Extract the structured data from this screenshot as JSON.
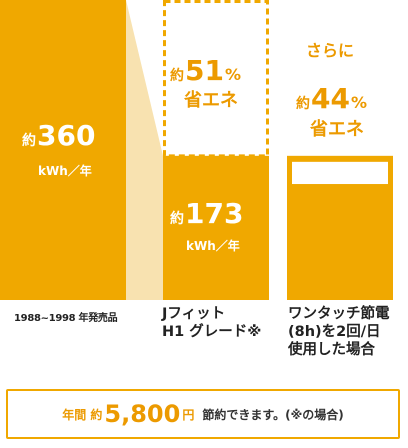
{
  "chart_data": {
    "type": "bar",
    "unit": "kWh／年",
    "categories": [
      "1988~1998 年発売品",
      "Jフィット H1グレード※",
      "ワンタッチ節電(8h)を2回/日 使用した場合"
    ],
    "category_lines": [
      [
        "1988~1998 年発売品"
      ],
      [
        "Jフィット",
        "H1 グレード※"
      ],
      [
        "ワンタッチ節電",
        "(8h)を2回/日",
        "使用した場合"
      ]
    ],
    "values": [
      360,
      173,
      null
    ],
    "bar_labels": [
      {
        "prefix": "約",
        "value": "360",
        "unit": "kWh／年"
      },
      {
        "prefix": "約",
        "value": "173",
        "unit": "kWh／年"
      }
    ],
    "savings": [
      {
        "category": "Jフィット H1グレード※",
        "pre": "",
        "prefix": "約",
        "value": "51",
        "percent": "%",
        "suffix": "省エネ"
      },
      {
        "category": "ワンタッチ節電(8h)を2回/日 使用した場合",
        "pre": "さらに",
        "prefix": "約",
        "value": "44",
        "percent": "%",
        "suffix": "省エネ"
      }
    ],
    "ylim": [
      0,
      360
    ],
    "colors": {
      "bar": "#f0a800",
      "connector": "#f8e2b0",
      "text_on_bar": "#ffffff",
      "accent_text": "#ec9a00"
    }
  },
  "footer": {
    "prefix": "年間 約",
    "amount": "5,800",
    "unit": "円",
    "description": "節約できます。(※の場合)"
  }
}
